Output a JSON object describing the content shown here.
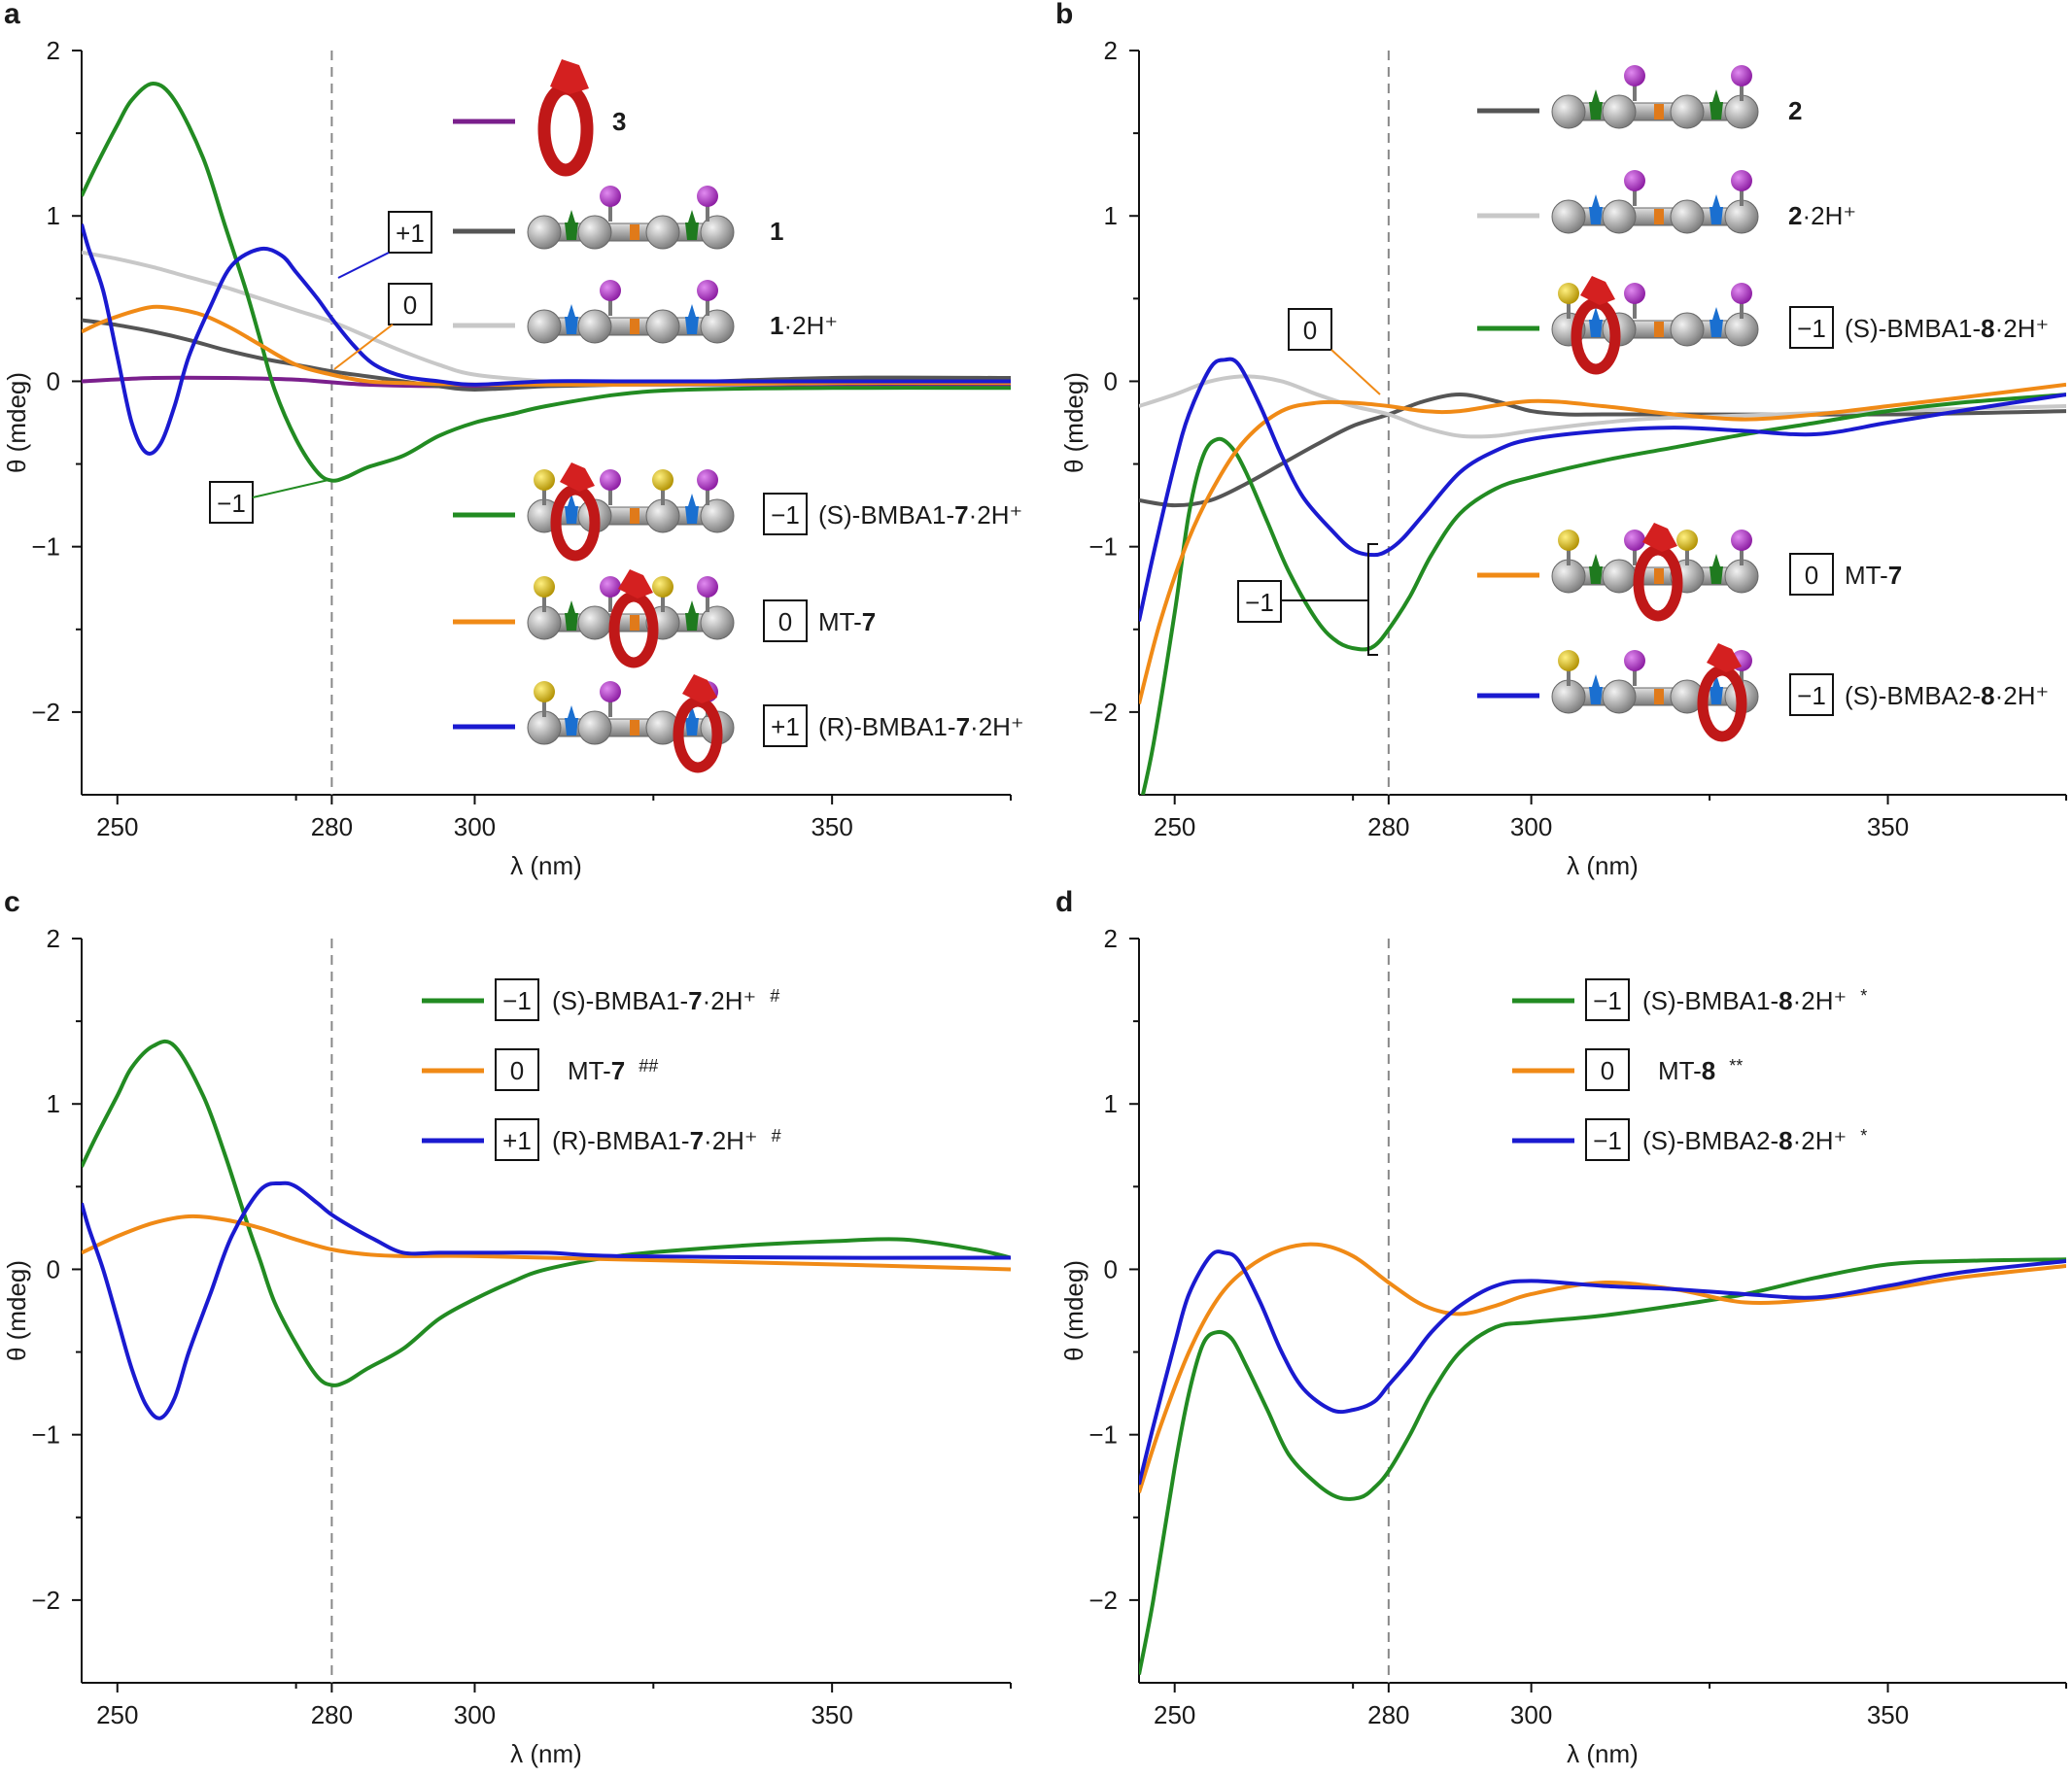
{
  "chart_data": [
    {
      "panel": "a",
      "type": "line",
      "xlabel": "λ (nm)",
      "ylabel": "θ (mdeg)",
      "xlim": [
        245,
        375
      ],
      "ylim": [
        -2.5,
        2
      ],
      "x_ticks": [
        "250",
        "280",
        "300",
        "350"
      ],
      "y_ticks": [
        "2",
        "1",
        "0",
        "−1",
        "−2"
      ],
      "reference_line_x": 280,
      "series": [
        {
          "name": "3",
          "color": "#7a1f8c",
          "x": [
            245,
            255,
            265,
            275,
            285,
            300,
            320,
            350,
            375
          ],
          "values": [
            0,
            0.02,
            0.02,
            0.01,
            -0.02,
            -0.03,
            -0.02,
            -0.02,
            -0.02
          ]
        },
        {
          "name": "1",
          "color": "#555555",
          "x": [
            245,
            250,
            255,
            260,
            265,
            270,
            275,
            280,
            285,
            290,
            295,
            300,
            310,
            320,
            350,
            375
          ],
          "values": [
            0.37,
            0.34,
            0.3,
            0.25,
            0.19,
            0.14,
            0.1,
            0.06,
            0.03,
            0.0,
            -0.03,
            -0.05,
            -0.03,
            -0.02,
            0.02,
            0.02
          ]
        },
        {
          "name": "1·2H⁺",
          "color": "#c8c8c8",
          "x": [
            245,
            250,
            255,
            260,
            265,
            270,
            275,
            280,
            285,
            290,
            295,
            300,
            310,
            320,
            350,
            375
          ],
          "values": [
            0.78,
            0.74,
            0.69,
            0.63,
            0.57,
            0.5,
            0.43,
            0.36,
            0.27,
            0.18,
            0.1,
            0.04,
            0.0,
            -0.02,
            -0.01,
            0
          ],
          "label_prefix": "",
          "label_bold": "1",
          "label_suffix": "·2H⁺"
        },
        {
          "name": "(S)-BMBA1-7·2H⁺",
          "color": "#228b22",
          "x": [
            245,
            247,
            250,
            252,
            255,
            258,
            262,
            265,
            268,
            270,
            272,
            275,
            278,
            280,
            282,
            285,
            290,
            295,
            300,
            305,
            310,
            320,
            330,
            350,
            375
          ],
          "values": [
            1.12,
            1.3,
            1.55,
            1.7,
            1.8,
            1.7,
            1.35,
            0.95,
            0.55,
            0.25,
            -0.05,
            -0.35,
            -0.55,
            -0.6,
            -0.58,
            -0.52,
            -0.45,
            -0.33,
            -0.25,
            -0.2,
            -0.15,
            -0.08,
            -0.05,
            -0.04,
            -0.04
          ],
          "box": "−1",
          "label_prefix": "(S)-BMBA1-",
          "label_bold": "7",
          "label_suffix": "·2H⁺"
        },
        {
          "name": "MT-7",
          "color": "#f08a16",
          "x": [
            245,
            248,
            252,
            255,
            258,
            262,
            266,
            270,
            275,
            280,
            285,
            290,
            300,
            320,
            350,
            375
          ],
          "values": [
            0.3,
            0.36,
            0.42,
            0.45,
            0.44,
            0.4,
            0.32,
            0.22,
            0.1,
            0.04,
            0.0,
            -0.01,
            -0.02,
            -0.02,
            -0.01,
            -0.01
          ],
          "box": "0",
          "label_prefix": "MT-",
          "label_bold": "7",
          "label_suffix": ""
        },
        {
          "name": "(R)-BMBA1-7·2H⁺",
          "color": "#1a1ad0",
          "x": [
            245,
            246,
            248,
            250,
            252,
            254,
            256,
            258,
            260,
            263,
            266,
            270,
            273,
            275,
            278,
            280,
            283,
            286,
            290,
            295,
            300,
            310,
            320,
            350,
            375
          ],
          "values": [
            0.95,
            0.8,
            0.55,
            0.15,
            -0.25,
            -0.43,
            -0.38,
            -0.15,
            0.15,
            0.45,
            0.7,
            0.8,
            0.76,
            0.66,
            0.5,
            0.38,
            0.22,
            0.1,
            0.03,
            0.0,
            -0.02,
            0.0,
            0.0,
            0.0,
            0.0
          ],
          "box": "+1",
          "label_prefix": "(R)-BMBA1-",
          "label_bold": "7",
          "label_suffix": "·2H⁺"
        }
      ],
      "annotations": [
        "+1",
        "0",
        "−1"
      ]
    },
    {
      "panel": "b",
      "type": "line",
      "xlabel": "λ (nm)",
      "ylabel": "θ (mdeg)",
      "xlim": [
        245,
        375
      ],
      "ylim": [
        -2.5,
        2
      ],
      "x_ticks": [
        "250",
        "280",
        "300",
        "350"
      ],
      "y_ticks": [
        "2",
        "1",
        "0",
        "−1",
        "−2"
      ],
      "reference_line_x": 280,
      "series": [
        {
          "name": "2",
          "color": "#555555",
          "x": [
            245,
            250,
            255,
            260,
            265,
            270,
            275,
            280,
            285,
            290,
            295,
            300,
            305,
            310,
            320,
            350,
            375
          ],
          "values": [
            -0.72,
            -0.75,
            -0.72,
            -0.62,
            -0.5,
            -0.38,
            -0.27,
            -0.2,
            -0.12,
            -0.08,
            -0.12,
            -0.18,
            -0.2,
            -0.2,
            -0.2,
            -0.2,
            -0.18
          ]
        },
        {
          "name": "2·2H⁺",
          "color": "#c8c8c8",
          "x": [
            245,
            250,
            255,
            260,
            265,
            270,
            275,
            280,
            285,
            290,
            295,
            300,
            310,
            320,
            350,
            375
          ],
          "values": [
            -0.15,
            -0.08,
            0.0,
            0.03,
            0.0,
            -0.08,
            -0.15,
            -0.2,
            -0.28,
            -0.33,
            -0.33,
            -0.3,
            -0.25,
            -0.22,
            -0.18,
            -0.15
          ],
          "label_prefix": "",
          "label_bold": "2",
          "label_suffix": "·2H⁺"
        },
        {
          "name": "(S)-BMBA1-8·2H⁺",
          "color": "#228b22",
          "x": [
            245,
            247,
            250,
            252,
            254,
            256,
            258,
            260,
            263,
            266,
            270,
            273,
            276,
            278,
            280,
            283,
            286,
            290,
            295,
            300,
            310,
            320,
            330,
            340,
            350,
            360,
            375
          ],
          "values": [
            -2.6,
            -2.2,
            -1.4,
            -0.8,
            -0.45,
            -0.35,
            -0.4,
            -0.55,
            -0.85,
            -1.15,
            -1.45,
            -1.58,
            -1.62,
            -1.6,
            -1.5,
            -1.3,
            -1.05,
            -0.8,
            -0.65,
            -0.58,
            -0.48,
            -0.4,
            -0.32,
            -0.25,
            -0.18,
            -0.13,
            -0.08
          ],
          "box": "−1",
          "label_prefix": "(S)-BMBA1-",
          "label_bold": "8",
          "label_suffix": "·2H⁺"
        },
        {
          "name": "MT-7",
          "color": "#f08a16",
          "x": [
            245,
            248,
            252,
            256,
            260,
            265,
            270,
            275,
            280,
            285,
            290,
            300,
            310,
            320,
            330,
            340,
            350,
            360,
            375
          ],
          "values": [
            -1.95,
            -1.45,
            -0.95,
            -0.6,
            -0.35,
            -0.18,
            -0.13,
            -0.13,
            -0.15,
            -0.18,
            -0.18,
            -0.12,
            -0.15,
            -0.2,
            -0.23,
            -0.2,
            -0.15,
            -0.1,
            -0.02
          ],
          "box": "0",
          "label_prefix": "MT-",
          "label_bold": "7",
          "label_suffix": ""
        },
        {
          "name": "(S)-BMBA2-8·2H⁺",
          "color": "#1a1ad0",
          "x": [
            245,
            247,
            250,
            252,
            255,
            257,
            259,
            262,
            265,
            268,
            272,
            275,
            278,
            280,
            282,
            285,
            290,
            295,
            300,
            310,
            320,
            330,
            340,
            350,
            360,
            375
          ],
          "values": [
            -1.45,
            -1.05,
            -0.5,
            -0.2,
            0.08,
            0.13,
            0.1,
            -0.15,
            -0.45,
            -0.7,
            -0.9,
            -1.02,
            -1.05,
            -1.02,
            -0.95,
            -0.8,
            -0.55,
            -0.42,
            -0.35,
            -0.3,
            -0.28,
            -0.3,
            -0.32,
            -0.25,
            -0.18,
            -0.08
          ],
          "box": "−1",
          "label_prefix": "(S)-BMBA2-",
          "label_bold": "8",
          "label_suffix": "·2H⁺"
        }
      ],
      "annotations": [
        "0",
        "−1"
      ]
    },
    {
      "panel": "c",
      "type": "line",
      "xlabel": "λ (nm)",
      "ylabel": "θ (mdeg)",
      "xlim": [
        245,
        375
      ],
      "ylim": [
        -2.5,
        2
      ],
      "x_ticks": [
        "250",
        "280",
        "300",
        "350"
      ],
      "y_ticks": [
        "2",
        "1",
        "0",
        "−1",
        "−2"
      ],
      "reference_line_x": 280,
      "series": [
        {
          "name": "(S)-BMBA1-7·2H⁺ #",
          "color": "#228b22",
          "x": [
            245,
            247,
            250,
            252,
            255,
            258,
            262,
            265,
            268,
            270,
            272,
            275,
            278,
            280,
            282,
            285,
            290,
            295,
            300,
            305,
            310,
            320,
            330,
            340,
            350,
            360,
            370,
            375
          ],
          "values": [
            0.62,
            0.8,
            1.05,
            1.22,
            1.35,
            1.35,
            1.05,
            0.7,
            0.3,
            0.05,
            -0.2,
            -0.45,
            -0.65,
            -0.7,
            -0.68,
            -0.6,
            -0.48,
            -0.3,
            -0.18,
            -0.08,
            0.0,
            0.08,
            0.12,
            0.15,
            0.17,
            0.18,
            0.12,
            0.07
          ],
          "box": "−1",
          "label_prefix": "(S)-BMBA1-",
          "label_bold": "7",
          "label_suffix": "·2H⁺",
          "mark": "#"
        },
        {
          "name": "MT-7 ##",
          "color": "#f08a16",
          "x": [
            245,
            250,
            255,
            260,
            265,
            270,
            275,
            280,
            285,
            290,
            300,
            320,
            350,
            375
          ],
          "values": [
            0.1,
            0.2,
            0.28,
            0.32,
            0.3,
            0.25,
            0.18,
            0.12,
            0.09,
            0.08,
            0.08,
            0.06,
            0.03,
            0.0
          ],
          "box": "0",
          "label_prefix": "MT-",
          "label_bold": "7",
          "label_suffix": "",
          "mark": "##"
        },
        {
          "name": "(R)-BMBA1-7·2H⁺ #",
          "color": "#1a1ad0",
          "x": [
            245,
            246,
            248,
            250,
            252,
            254,
            256,
            258,
            260,
            263,
            266,
            270,
            273,
            275,
            278,
            280,
            283,
            286,
            290,
            295,
            300,
            310,
            320,
            350,
            375
          ],
          "values": [
            0.4,
            0.25,
            0.0,
            -0.3,
            -0.6,
            -0.82,
            -0.9,
            -0.78,
            -0.5,
            -0.15,
            0.2,
            0.48,
            0.52,
            0.5,
            0.4,
            0.33,
            0.25,
            0.18,
            0.1,
            0.1,
            0.1,
            0.1,
            0.08,
            0.07,
            0.07
          ],
          "box": "+1",
          "label_prefix": "(R)-BMBA1-",
          "label_bold": "7",
          "label_suffix": "·2H⁺",
          "mark": "#"
        }
      ]
    },
    {
      "panel": "d",
      "type": "line",
      "xlabel": "λ (nm)",
      "ylabel": "θ (mdeg)",
      "xlim": [
        245,
        375
      ],
      "ylim": [
        -2.5,
        2
      ],
      "x_ticks": [
        "250",
        "280",
        "300",
        "350"
      ],
      "y_ticks": [
        "2",
        "1",
        "0",
        "−1",
        "−2"
      ],
      "reference_line_x": 280,
      "series": [
        {
          "name": "(S)-BMBA1-8·2H⁺ *",
          "color": "#228b22",
          "x": [
            245,
            247,
            250,
            252,
            254,
            256,
            258,
            260,
            263,
            266,
            270,
            273,
            276,
            278,
            280,
            283,
            286,
            290,
            295,
            300,
            310,
            320,
            330,
            340,
            350,
            360,
            375
          ],
          "values": [
            -2.45,
            -2.0,
            -1.2,
            -0.75,
            -0.45,
            -0.38,
            -0.42,
            -0.58,
            -0.85,
            -1.12,
            -1.3,
            -1.38,
            -1.38,
            -1.32,
            -1.22,
            -1.0,
            -0.75,
            -0.5,
            -0.35,
            -0.32,
            -0.28,
            -0.22,
            -0.15,
            -0.05,
            0.03,
            0.05,
            0.06
          ],
          "box": "−1",
          "label_prefix": "(S)-BMBA1-",
          "label_bold": "8",
          "label_suffix": "·2H⁺",
          "mark": "*"
        },
        {
          "name": "MT-8 **",
          "color": "#f08a16",
          "x": [
            245,
            248,
            252,
            256,
            260,
            265,
            270,
            275,
            280,
            285,
            290,
            295,
            300,
            310,
            320,
            330,
            340,
            350,
            360,
            375
          ],
          "values": [
            -1.35,
            -0.95,
            -0.5,
            -0.18,
            0.0,
            0.12,
            0.15,
            0.08,
            -0.08,
            -0.22,
            -0.27,
            -0.22,
            -0.15,
            -0.08,
            -0.12,
            -0.2,
            -0.18,
            -0.12,
            -0.05,
            0.02
          ],
          "box": "0",
          "label_prefix": "MT-",
          "label_bold": "8",
          "label_suffix": "",
          "mark": "**"
        },
        {
          "name": "(S)-BMBA2-8·2H⁺ *",
          "color": "#1a1ad0",
          "x": [
            245,
            247,
            250,
            252,
            255,
            257,
            259,
            262,
            265,
            268,
            272,
            275,
            278,
            280,
            283,
            286,
            290,
            295,
            300,
            310,
            320,
            330,
            340,
            350,
            360,
            375
          ],
          "values": [
            -1.3,
            -0.95,
            -0.45,
            -0.15,
            0.08,
            0.1,
            0.05,
            -0.2,
            -0.5,
            -0.72,
            -0.85,
            -0.85,
            -0.8,
            -0.7,
            -0.55,
            -0.38,
            -0.22,
            -0.1,
            -0.07,
            -0.1,
            -0.12,
            -0.15,
            -0.17,
            -0.1,
            -0.02,
            0.05
          ],
          "box": "−1",
          "label_prefix": "(S)-BMBA2-",
          "label_bold": "8",
          "label_suffix": "·2H⁺",
          "mark": "*"
        }
      ]
    }
  ]
}
